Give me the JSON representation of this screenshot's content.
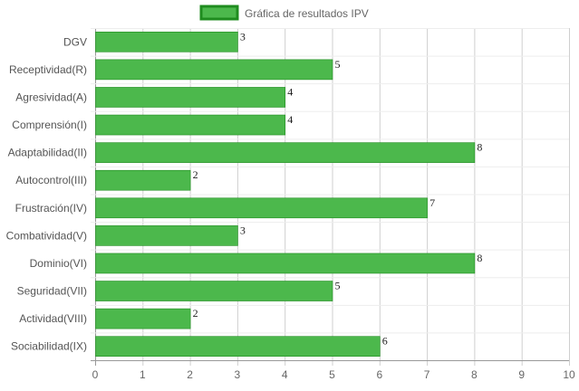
{
  "chart_data": {
    "type": "bar",
    "orientation": "horizontal",
    "categories": [
      "DGV",
      "Receptividad(R)",
      "Agresividad(A)",
      "Comprensión(I)",
      "Adaptabilidad(II)",
      "Autocontrol(III)",
      "Frustración(IV)",
      "Combatividad(V)",
      "Dominio(VI)",
      "Seguridad(VII)",
      "Actividad(VIII)",
      "Sociabilidad(IX)"
    ],
    "series": [
      {
        "name": "Gráfica de resultados IPV",
        "values": [
          3,
          5,
          4,
          4,
          8,
          2,
          7,
          3,
          8,
          5,
          2,
          6
        ],
        "color": "#4cb84c",
        "border_color": "#1f8c1f"
      }
    ],
    "xlim": [
      0,
      10
    ],
    "x_ticks": [
      "0",
      "1",
      "2",
      "3",
      "4",
      "5",
      "6",
      "7",
      "8",
      "9",
      "10"
    ],
    "grid": true,
    "legend_position": "top",
    "data_labels": true
  }
}
